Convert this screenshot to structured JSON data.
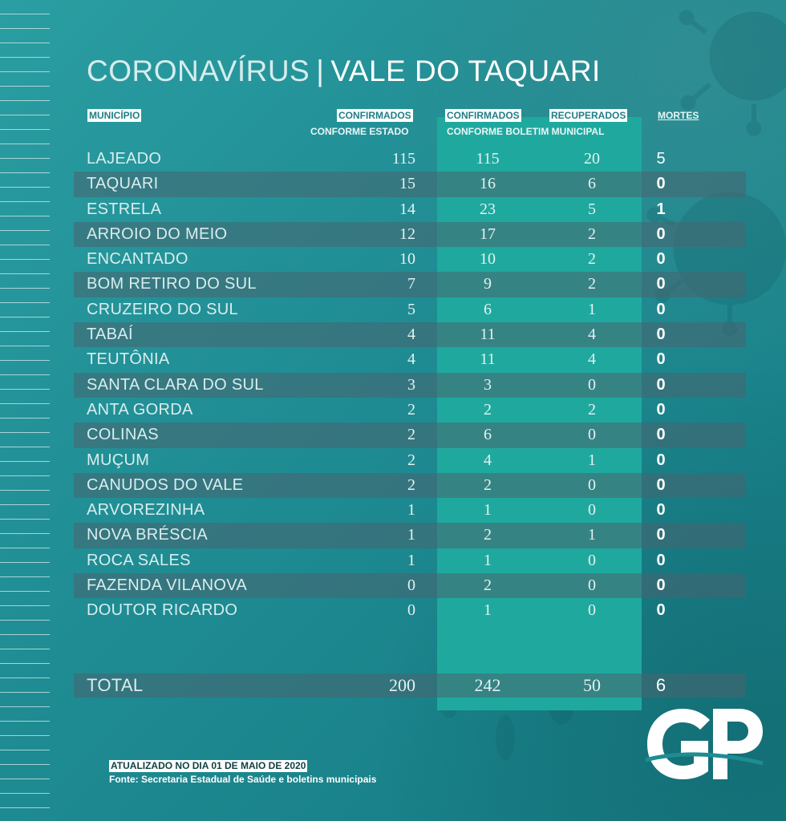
{
  "title": {
    "light": "CORONAVÍRUS",
    "separator": "|",
    "bold": "VALE DO TAQUARI"
  },
  "headers": {
    "municipio": "MUNICÍPIO",
    "confirmados_estado_top": "CONFIRMADOS",
    "confirmados_estado_bottom": "CONFORME ESTADO",
    "confirmados_boletim_top": "CONFIRMADOS",
    "confirmados_boletim_bottom": "CONFORME BOLETIM MUNICIPAL",
    "recuperados": "RECUPERADOS",
    "mortes": "MORTES"
  },
  "rows": [
    {
      "municipio": "LAJEADO",
      "estado": "115",
      "boletim": "115",
      "recuperados": "20",
      "mortes": "5"
    },
    {
      "municipio": "TAQUARI",
      "estado": "15",
      "boletim": "16",
      "recuperados": "6",
      "mortes": "0"
    },
    {
      "municipio": "ESTRELA",
      "estado": "14",
      "boletim": "23",
      "recuperados": "5",
      "mortes": "1"
    },
    {
      "municipio": "ARROIO DO MEIO",
      "estado": "12",
      "boletim": "17",
      "recuperados": "2",
      "mortes": "0"
    },
    {
      "municipio": "ENCANTADO",
      "estado": "10",
      "boletim": "10",
      "recuperados": "2",
      "mortes": "0"
    },
    {
      "municipio": "BOM RETIRO DO SUL",
      "estado": "7",
      "boletim": "9",
      "recuperados": "2",
      "mortes": "0"
    },
    {
      "municipio": "CRUZEIRO DO SUL",
      "estado": "5",
      "boletim": "6",
      "recuperados": "1",
      "mortes": "0"
    },
    {
      "municipio": "TABAÍ",
      "estado": "4",
      "boletim": "11",
      "recuperados": "4",
      "mortes": "0"
    },
    {
      "municipio": "TEUTÔNIA",
      "estado": "4",
      "boletim": "11",
      "recuperados": "4",
      "mortes": "0"
    },
    {
      "municipio": "SANTA CLARA DO SUL",
      "estado": "3",
      "boletim": "3",
      "recuperados": "0",
      "mortes": "0"
    },
    {
      "municipio": "ANTA GORDA",
      "estado": "2",
      "boletim": "2",
      "recuperados": "2",
      "mortes": "0"
    },
    {
      "municipio": "COLINAS",
      "estado": "2",
      "boletim": "6",
      "recuperados": "0",
      "mortes": "0"
    },
    {
      "municipio": "MUÇUM",
      "estado": "2",
      "boletim": "4",
      "recuperados": "1",
      "mortes": "0"
    },
    {
      "municipio": "CANUDOS DO VALE",
      "estado": "2",
      "boletim": "2",
      "recuperados": "0",
      "mortes": "0"
    },
    {
      "municipio": "ARVOREZINHA",
      "estado": "1",
      "boletim": "1",
      "recuperados": "0",
      "mortes": "0"
    },
    {
      "municipio": "NOVA BRÉSCIA",
      "estado": "1",
      "boletim": "2",
      "recuperados": "1",
      "mortes": "0"
    },
    {
      "municipio": "ROCA SALES",
      "estado": "1",
      "boletim": "1",
      "recuperados": "0",
      "mortes": "0"
    },
    {
      "municipio": "FAZENDA VILANOVA",
      "estado": "0",
      "boletim": "2",
      "recuperados": "0",
      "mortes": "0"
    },
    {
      "municipio": "DOUTOR RICARDO",
      "estado": "0",
      "boletim": "1",
      "recuperados": "0",
      "mortes": "0"
    }
  ],
  "total": {
    "label": "TOTAL",
    "estado": "200",
    "boletim": "242",
    "recuperados": "50",
    "mortes": "6"
  },
  "footer": {
    "updated": "ATUALIZADO NO DIA 01 DE MAIO DE 2020",
    "source": "Fonte: Secretaria Estadual de Saúde e boletins municipais"
  },
  "logo": {
    "text": "GP"
  },
  "colors": {
    "background": "#1f8c93",
    "highlight_column": "#1fa99e",
    "dark_row": "#486470",
    "text": "#d7ecec"
  }
}
